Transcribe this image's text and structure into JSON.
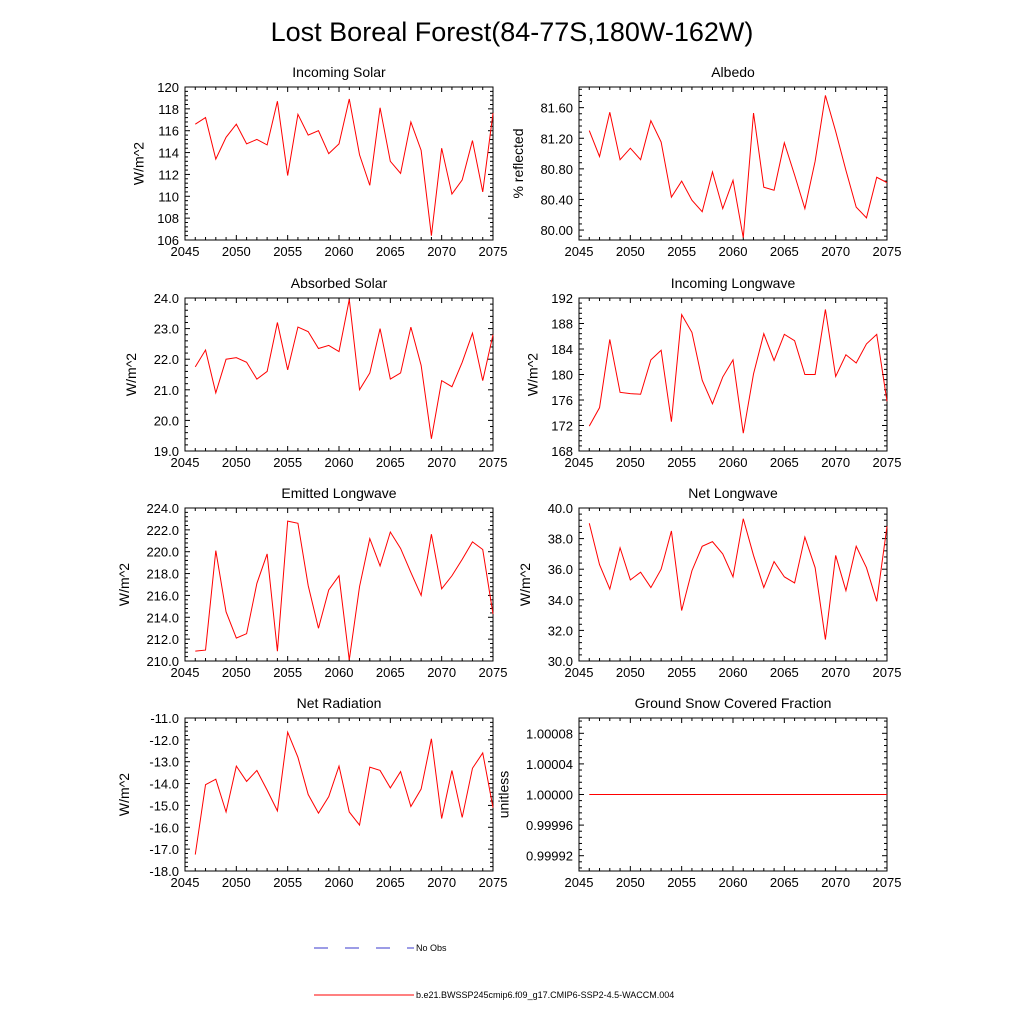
{
  "figure": {
    "title": "Lost Boreal Forest(84-77S,180W-162W)",
    "legend": [
      {
        "label": "No Obs",
        "style": "dashed",
        "color": "#3a3acd"
      },
      {
        "label": "b.e21.BWSSP245cmip6.f09_g17.CMIP6-SSP2-4.5-WACCM.004",
        "style": "solid",
        "color": "#ff0000"
      }
    ],
    "line_color": "#ff0000"
  },
  "chart_data": [
    {
      "type": "line",
      "title": "Incoming Solar",
      "ylabel": "W/m^2",
      "xlabel": "",
      "xlim": [
        2045,
        2075
      ],
      "ylim": [
        106,
        120
      ],
      "xticks": [
        2045,
        2050,
        2055,
        2060,
        2065,
        2070,
        2075
      ],
      "yticks": [
        "106",
        "108",
        "110",
        "112",
        "114",
        "116",
        "118",
        "120"
      ],
      "x": [
        2046,
        2047,
        2048,
        2049,
        2050,
        2051,
        2052,
        2053,
        2054,
        2055,
        2056,
        2057,
        2058,
        2059,
        2060,
        2061,
        2062,
        2063,
        2064,
        2065,
        2066,
        2067,
        2068,
        2069,
        2070,
        2071,
        2072,
        2073,
        2074,
        2075
      ],
      "series": [
        {
          "name": "b.e21.BWSSP245cmip6.f09_g17.CMIP6-SSP2-4.5-WACCM.004",
          "values": [
            116.6,
            117.2,
            113.4,
            115.4,
            116.6,
            114.8,
            115.2,
            114.7,
            118.7,
            111.9,
            117.5,
            115.6,
            116.0,
            113.9,
            114.8,
            118.9,
            113.8,
            111.0,
            118.1,
            113.2,
            112.1,
            116.8,
            114.2,
            106.4,
            114.4,
            110.2,
            111.5,
            115.1,
            110.4,
            117.6
          ]
        }
      ]
    },
    {
      "type": "line",
      "title": "Albedo",
      "ylabel": "% reflected",
      "xlabel": "",
      "xlim": [
        2045,
        2075
      ],
      "ylim": [
        79.87,
        81.87
      ],
      "xticks": [
        2045,
        2050,
        2055,
        2060,
        2065,
        2070,
        2075
      ],
      "yticks": [
        "80.00",
        "80.40",
        "80.80",
        "81.20",
        "81.60"
      ],
      "x": [
        2046,
        2047,
        2048,
        2049,
        2050,
        2051,
        2052,
        2053,
        2054,
        2055,
        2056,
        2057,
        2058,
        2059,
        2060,
        2061,
        2062,
        2063,
        2064,
        2065,
        2066,
        2067,
        2068,
        2069,
        2070,
        2071,
        2072,
        2073,
        2074,
        2075
      ],
      "series": [
        {
          "name": "b.e21.BWSSP245cmip6.f09_g17.CMIP6-SSP2-4.5-WACCM.004",
          "values": [
            81.3,
            80.96,
            81.54,
            80.92,
            81.07,
            80.92,
            81.43,
            81.15,
            80.43,
            80.64,
            80.39,
            80.24,
            80.76,
            80.28,
            80.65,
            79.9,
            81.53,
            80.56,
            80.52,
            81.14,
            80.72,
            80.28,
            80.9,
            81.76,
            81.29,
            80.78,
            80.3,
            80.16,
            80.69,
            80.62
          ]
        }
      ]
    },
    {
      "type": "line",
      "title": "Absorbed Solar",
      "ylabel": "W/m^2",
      "xlabel": "",
      "xlim": [
        2045,
        2075
      ],
      "ylim": [
        19,
        24
      ],
      "xticks": [
        2045,
        2050,
        2055,
        2060,
        2065,
        2070,
        2075
      ],
      "yticks": [
        "19.0",
        "20.0",
        "21.0",
        "22.0",
        "23.0",
        "24.0"
      ],
      "x": [
        2046,
        2047,
        2048,
        2049,
        2050,
        2051,
        2052,
        2053,
        2054,
        2055,
        2056,
        2057,
        2058,
        2059,
        2060,
        2061,
        2062,
        2063,
        2064,
        2065,
        2066,
        2067,
        2068,
        2069,
        2070,
        2071,
        2072,
        2073,
        2074,
        2075
      ],
      "series": [
        {
          "name": "b.e21.BWSSP245cmip6.f09_g17.CMIP6-SSP2-4.5-WACCM.004",
          "values": [
            21.75,
            22.3,
            20.9,
            22.0,
            22.05,
            21.9,
            21.35,
            21.6,
            23.2,
            21.65,
            23.05,
            22.9,
            22.35,
            22.45,
            22.25,
            23.95,
            21.0,
            21.55,
            23.0,
            21.35,
            21.55,
            23.05,
            21.8,
            19.4,
            21.3,
            21.1,
            21.9,
            22.85,
            21.3,
            22.8
          ]
        }
      ]
    },
    {
      "type": "line",
      "title": "Incoming Longwave",
      "ylabel": "W/m^2",
      "xlabel": "",
      "xlim": [
        2045,
        2075
      ],
      "ylim": [
        168,
        192
      ],
      "xticks": [
        2045,
        2050,
        2055,
        2060,
        2065,
        2070,
        2075
      ],
      "yticks": [
        "168",
        "172",
        "176",
        "180",
        "184",
        "188",
        "192"
      ],
      "x": [
        2046,
        2047,
        2048,
        2049,
        2050,
        2051,
        2052,
        2053,
        2054,
        2055,
        2056,
        2057,
        2058,
        2059,
        2060,
        2061,
        2062,
        2063,
        2064,
        2065,
        2066,
        2067,
        2068,
        2069,
        2070,
        2071,
        2072,
        2073,
        2074,
        2075
      ],
      "series": [
        {
          "name": "b.e21.BWSSP245cmip6.f09_g17.CMIP6-SSP2-4.5-WACCM.004",
          "values": [
            171.9,
            174.8,
            185.5,
            177.2,
            177.0,
            176.9,
            182.3,
            183.8,
            172.6,
            189.4,
            186.6,
            179.1,
            175.4,
            179.6,
            182.3,
            170.8,
            180.1,
            186.4,
            182.2,
            186.3,
            185.3,
            180.0,
            180.0,
            190.2,
            179.7,
            183.1,
            181.8,
            184.8,
            186.3,
            175.8
          ]
        }
      ]
    },
    {
      "type": "line",
      "title": "Emitted Longwave",
      "ylabel": "W/m^2",
      "xlabel": "",
      "xlim": [
        2045,
        2075
      ],
      "ylim": [
        210,
        224
      ],
      "xticks": [
        2045,
        2050,
        2055,
        2060,
        2065,
        2070,
        2075
      ],
      "yticks": [
        "210.0",
        "212.0",
        "214.0",
        "216.0",
        "218.0",
        "220.0",
        "222.0",
        "224.0"
      ],
      "x": [
        2046,
        2047,
        2048,
        2049,
        2050,
        2051,
        2052,
        2053,
        2054,
        2055,
        2056,
        2057,
        2058,
        2059,
        2060,
        2061,
        2062,
        2063,
        2064,
        2065,
        2066,
        2067,
        2068,
        2069,
        2070,
        2071,
        2072,
        2073,
        2074,
        2075
      ],
      "series": [
        {
          "name": "b.e21.BWSSP245cmip6.f09_g17.CMIP6-SSP2-4.5-WACCM.004",
          "values": [
            210.9,
            211.0,
            220.1,
            214.5,
            212.1,
            212.5,
            217.1,
            219.8,
            210.9,
            222.8,
            222.6,
            216.9,
            213.0,
            216.5,
            217.8,
            210.1,
            216.8,
            221.2,
            218.7,
            221.8,
            220.3,
            218.1,
            216.0,
            221.6,
            216.6,
            217.8,
            219.3,
            220.9,
            220.2,
            214.3
          ]
        }
      ]
    },
    {
      "type": "line",
      "title": "Net Longwave",
      "ylabel": "W/m^2",
      "xlabel": "",
      "xlim": [
        2045,
        2075
      ],
      "ylim": [
        30,
        40
      ],
      "xticks": [
        2045,
        2050,
        2055,
        2060,
        2065,
        2070,
        2075
      ],
      "yticks": [
        "30.0",
        "32.0",
        "34.0",
        "36.0",
        "38.0",
        "40.0"
      ],
      "x": [
        2046,
        2047,
        2048,
        2049,
        2050,
        2051,
        2052,
        2053,
        2054,
        2055,
        2056,
        2057,
        2058,
        2059,
        2060,
        2061,
        2062,
        2063,
        2064,
        2065,
        2066,
        2067,
        2068,
        2069,
        2070,
        2071,
        2072,
        2073,
        2074,
        2075
      ],
      "series": [
        {
          "name": "b.e21.BWSSP245cmip6.f09_g17.CMIP6-SSP2-4.5-WACCM.004",
          "values": [
            39.0,
            36.3,
            34.7,
            37.4,
            35.3,
            35.8,
            34.8,
            36.0,
            38.5,
            33.3,
            35.9,
            37.5,
            37.8,
            37.0,
            35.5,
            39.3,
            36.9,
            34.8,
            36.5,
            35.5,
            35.1,
            38.1,
            36.1,
            31.4,
            36.9,
            34.6,
            37.5,
            36.1,
            33.9,
            38.8
          ]
        }
      ]
    },
    {
      "type": "line",
      "title": "Net Radiation",
      "ylabel": "W/m^2",
      "xlabel": "",
      "xlim": [
        2045,
        2075
      ],
      "ylim": [
        -18,
        -11
      ],
      "xticks": [
        2045,
        2050,
        2055,
        2060,
        2065,
        2070,
        2075
      ],
      "yticks": [
        "-18.0",
        "-17.0",
        "-16.0",
        "-15.0",
        "-14.0",
        "-13.0",
        "-12.0",
        "-11.0"
      ],
      "x": [
        2046,
        2047,
        2048,
        2049,
        2050,
        2051,
        2052,
        2053,
        2054,
        2055,
        2056,
        2057,
        2058,
        2059,
        2060,
        2061,
        2062,
        2063,
        2064,
        2065,
        2066,
        2067,
        2068,
        2069,
        2070,
        2071,
        2072,
        2073,
        2074,
        2075
      ],
      "series": [
        {
          "name": "b.e21.BWSSP245cmip6.f09_g17.CMIP6-SSP2-4.5-WACCM.004",
          "values": [
            -17.25,
            -14.05,
            -13.8,
            -15.3,
            -13.2,
            -13.9,
            -13.4,
            -14.3,
            -15.25,
            -11.65,
            -12.8,
            -14.5,
            -15.35,
            -14.6,
            -13.2,
            -15.3,
            -15.9,
            -13.25,
            -13.4,
            -14.2,
            -13.45,
            -15.05,
            -14.25,
            -11.95,
            -15.6,
            -13.4,
            -15.55,
            -13.3,
            -12.6,
            -15.1
          ]
        }
      ]
    },
    {
      "type": "line",
      "title": "Ground Snow Covered Fraction",
      "ylabel": "unitless",
      "xlabel": "",
      "xlim": [
        2045,
        2075
      ],
      "ylim": [
        0.9999,
        1.0001
      ],
      "xticks": [
        2045,
        2050,
        2055,
        2060,
        2065,
        2070,
        2075
      ],
      "yticks": [
        "0.99992",
        "0.99996",
        "1.00000",
        "1.00004",
        "1.00008"
      ],
      "x": [
        2046,
        2047,
        2048,
        2049,
        2050,
        2051,
        2052,
        2053,
        2054,
        2055,
        2056,
        2057,
        2058,
        2059,
        2060,
        2061,
        2062,
        2063,
        2064,
        2065,
        2066,
        2067,
        2068,
        2069,
        2070,
        2071,
        2072,
        2073,
        2074,
        2075
      ],
      "series": [
        {
          "name": "b.e21.BWSSP245cmip6.f09_g17.CMIP6-SSP2-4.5-WACCM.004",
          "values": [
            1,
            1,
            1,
            1,
            1,
            1,
            1,
            1,
            1,
            1,
            1,
            1,
            1,
            1,
            1,
            1,
            1,
            1,
            1,
            1,
            1,
            1,
            1,
            1,
            1,
            1,
            1,
            1,
            1,
            1
          ]
        }
      ]
    }
  ]
}
